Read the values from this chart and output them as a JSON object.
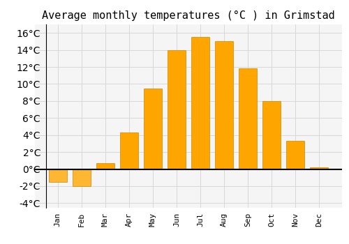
{
  "title": "Average monthly temperatures (°C ) in Grimstad",
  "months": [
    "Jan",
    "Feb",
    "Mar",
    "Apr",
    "May",
    "Jun",
    "Jul",
    "Aug",
    "Sep",
    "Oct",
    "Nov",
    "Dec"
  ],
  "temperatures": [
    -1.5,
    -2.0,
    0.7,
    4.3,
    9.5,
    14.0,
    15.5,
    15.0,
    11.8,
    8.0,
    3.3,
    0.2
  ],
  "bar_color_face": "#FFA500",
  "bar_color_light": "#FFB733",
  "bar_edge_color": "#CC8800",
  "background_color": "#ffffff",
  "plot_bg_color": "#f5f5f5",
  "grid_color": "#d8d8d8",
  "ylim": [
    -4.5,
    17
  ],
  "yticks": [
    -4,
    -2,
    0,
    2,
    4,
    6,
    8,
    10,
    12,
    14,
    16
  ],
  "title_fontsize": 11,
  "tick_fontsize": 8,
  "bar_width": 0.75
}
